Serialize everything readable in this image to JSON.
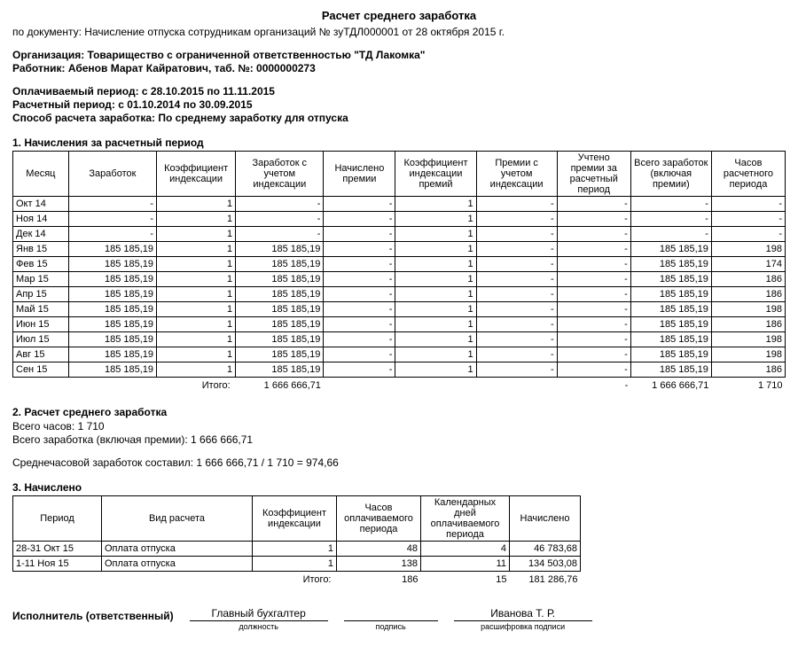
{
  "title": "Расчет среднего заработка",
  "doc_line_prefix": "по документу: ",
  "doc_line": "Начисление отпуска сотрудникам организаций № зуТДЛ000001 от 28 октября 2015 г.",
  "org_label": "Организация: ",
  "org": "Товарищество с ограниченной ответственностью \"ТД Лакомка\"",
  "worker_label": "Работник: ",
  "worker": "Абенов Марат Кайратович, таб. №: 0000000273",
  "paid_period_label": "Оплачиваемый период: ",
  "paid_period": "с 28.10.2015 по 11.11.2015",
  "calc_period_label": "Расчетный период: ",
  "calc_period": "с 01.10.2014 по 30.09.2015",
  "method_label": "Способ расчета заработка: ",
  "method": "По среднему заработку для отпуска",
  "section1": "1. Начисления за расчетный период",
  "t1": {
    "headers": [
      "Месяц",
      "Заработок",
      "Коэффициент индексации",
      "Заработок с учетом индексации",
      "Начислено премии",
      "Коэффициент индексации премий",
      "Премии с учетом индексации",
      "Учтено премии за расчетный период",
      "Всего заработок (включая премии)",
      "Часов расчетного периода"
    ],
    "rows": [
      [
        "Окт 14",
        "-",
        "1",
        "-",
        "-",
        "1",
        "-",
        "-",
        "-",
        "-"
      ],
      [
        "Ноя 14",
        "-",
        "1",
        "-",
        "-",
        "1",
        "-",
        "-",
        "-",
        "-"
      ],
      [
        "Дек 14",
        "-",
        "1",
        "-",
        "-",
        "1",
        "-",
        "-",
        "-",
        "-"
      ],
      [
        "Янв 15",
        "185 185,19",
        "1",
        "185 185,19",
        "-",
        "1",
        "-",
        "-",
        "185 185,19",
        "198"
      ],
      [
        "Фев 15",
        "185 185,19",
        "1",
        "185 185,19",
        "-",
        "1",
        "-",
        "-",
        "185 185,19",
        "174"
      ],
      [
        "Мар 15",
        "185 185,19",
        "1",
        "185 185,19",
        "-",
        "1",
        "-",
        "-",
        "185 185,19",
        "186"
      ],
      [
        "Апр 15",
        "185 185,19",
        "1",
        "185 185,19",
        "-",
        "1",
        "-",
        "-",
        "185 185,19",
        "186"
      ],
      [
        "Май 15",
        "185 185,19",
        "1",
        "185 185,19",
        "-",
        "1",
        "-",
        "-",
        "185 185,19",
        "198"
      ],
      [
        "Июн 15",
        "185 185,19",
        "1",
        "185 185,19",
        "-",
        "1",
        "-",
        "-",
        "185 185,19",
        "186"
      ],
      [
        "Июл 15",
        "185 185,19",
        "1",
        "185 185,19",
        "-",
        "1",
        "-",
        "-",
        "185 185,19",
        "198"
      ],
      [
        "Авг 15",
        "185 185,19",
        "1",
        "185 185,19",
        "-",
        "1",
        "-",
        "-",
        "185 185,19",
        "198"
      ],
      [
        "Сен 15",
        "185 185,19",
        "1",
        "185 185,19",
        "-",
        "1",
        "-",
        "-",
        "185 185,19",
        "186"
      ]
    ],
    "totals_label": "Итого:",
    "totals": [
      "1 666 666,71",
      "",
      "",
      "",
      "-",
      "1 666 666,71",
      "1 710"
    ]
  },
  "section2": "2. Расчет среднего  заработка",
  "s2_hours": "Всего часов: 1 710",
  "s2_total": "Всего заработка (включая премии): 1 666 666,71",
  "s2_avg": "Среднечасовой заработок составил: 1 666 666,71 / 1 710 = 974,66",
  "section3": "3. Начислено",
  "t3": {
    "headers": [
      "Период",
      "Вид расчета",
      "Коэффициент индексации",
      "Часов оплачиваемого периода",
      "Календарных дней оплачиваемого периода",
      "Начислено"
    ],
    "rows": [
      [
        "28-31 Окт 15",
        "Оплата отпуска",
        "1",
        "48",
        "4",
        "46 783,68"
      ],
      [
        "1-11 Ноя 15",
        "Оплата отпуска",
        "1",
        "138",
        "11",
        "134 503,08"
      ]
    ],
    "totals_label": "Итого:",
    "totals": [
      "186",
      "15",
      "181 286,76"
    ]
  },
  "sign": {
    "label": "Исполнитель (ответственный)",
    "position": "Главный бухгалтер",
    "position_cap": "должность",
    "sign_cap": "подпись",
    "name": "Иванова Т. Р.",
    "name_cap": "расшифровка подписи"
  }
}
